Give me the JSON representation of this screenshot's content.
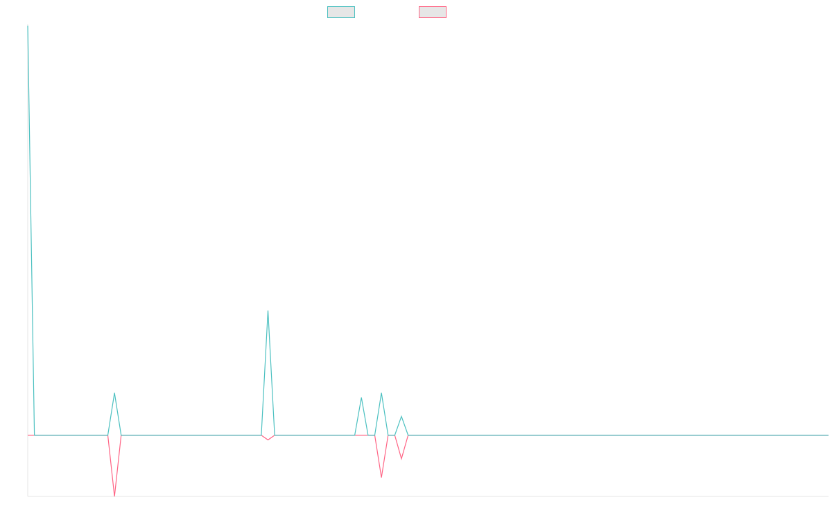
{
  "chart_data": {
    "type": "line",
    "title": "",
    "xlabel": "",
    "ylabel": "",
    "x": [
      0,
      1,
      2,
      3,
      4,
      5,
      6,
      7,
      8,
      9,
      10,
      11,
      12,
      13,
      14,
      15,
      16,
      17,
      18,
      19,
      20,
      21,
      22,
      23,
      24,
      25,
      26,
      27,
      28,
      29,
      30,
      31,
      32,
      33,
      34,
      35,
      36,
      37,
      38,
      39,
      40,
      41,
      42,
      43,
      44,
      45,
      46,
      47,
      48,
      49,
      50,
      51,
      52,
      53,
      54,
      55,
      56,
      57,
      58,
      59,
      60,
      61,
      62,
      63,
      64,
      65,
      66,
      67,
      68,
      69,
      70,
      71,
      72,
      73,
      74,
      75,
      76,
      77,
      78,
      79,
      80,
      81,
      82,
      83,
      84,
      85,
      86,
      87,
      88,
      89,
      90,
      91,
      92,
      93,
      94,
      95,
      96,
      97,
      98,
      99,
      100,
      101,
      102,
      103,
      104,
      105,
      106,
      107,
      108,
      109,
      110,
      111,
      112,
      113,
      114,
      115,
      116,
      117,
      118,
      119,
      120
    ],
    "ylim": [
      -13,
      87
    ],
    "grid": false,
    "legend": "top-center",
    "series": [
      {
        "color": "#4bc0c0",
        "values": [
          87,
          0,
          0,
          0,
          0,
          0,
          0,
          0,
          0,
          0,
          0,
          0,
          0,
          9,
          0,
          0,
          0,
          0,
          0,
          0,
          0,
          0,
          0,
          0,
          0,
          0,
          0,
          0,
          0,
          0,
          0,
          0,
          0,
          0,
          0,
          0,
          26.5,
          0,
          0,
          0,
          0,
          0,
          0,
          0,
          0,
          0,
          0,
          0,
          0,
          0,
          8,
          0,
          0,
          9,
          0,
          0,
          4,
          0,
          0,
          0,
          0,
          0,
          0,
          0,
          0,
          0,
          0,
          0,
          0,
          0,
          0,
          0,
          0,
          0,
          0,
          0,
          0,
          0,
          0,
          0,
          0,
          0,
          0,
          0,
          0,
          0,
          0,
          0,
          0,
          0,
          0,
          0,
          0,
          0,
          0,
          0,
          0,
          0,
          0,
          0,
          0,
          0,
          0,
          0,
          0,
          0,
          0,
          0,
          0,
          0,
          0,
          0,
          0,
          0,
          0,
          0,
          0,
          0,
          0,
          0,
          0
        ]
      },
      {
        "color": "#ff6384",
        "values": [
          0,
          0,
          0,
          0,
          0,
          0,
          0,
          0,
          0,
          0,
          0,
          0,
          0,
          -13,
          0,
          0,
          0,
          0,
          0,
          0,
          0,
          0,
          0,
          0,
          0,
          0,
          0,
          0,
          0,
          0,
          0,
          0,
          0,
          0,
          0,
          0,
          -1,
          0,
          0,
          0,
          0,
          0,
          0,
          0,
          0,
          0,
          0,
          0,
          0,
          0,
          0,
          0,
          0,
          -9,
          0,
          0,
          -5,
          0,
          0,
          0,
          0,
          0,
          0,
          0,
          0,
          0,
          0,
          0,
          0,
          0,
          0,
          0,
          0,
          0,
          0,
          0,
          0,
          0,
          0,
          0,
          0,
          0,
          0,
          0,
          0,
          0,
          0,
          0,
          0,
          0,
          0,
          0,
          0,
          0,
          0,
          0,
          0,
          0,
          0,
          0,
          0,
          0,
          0,
          0,
          0,
          0,
          0,
          0,
          0,
          0,
          0,
          0,
          0,
          0,
          0,
          0,
          0,
          0,
          0,
          0,
          0
        ]
      }
    ]
  }
}
